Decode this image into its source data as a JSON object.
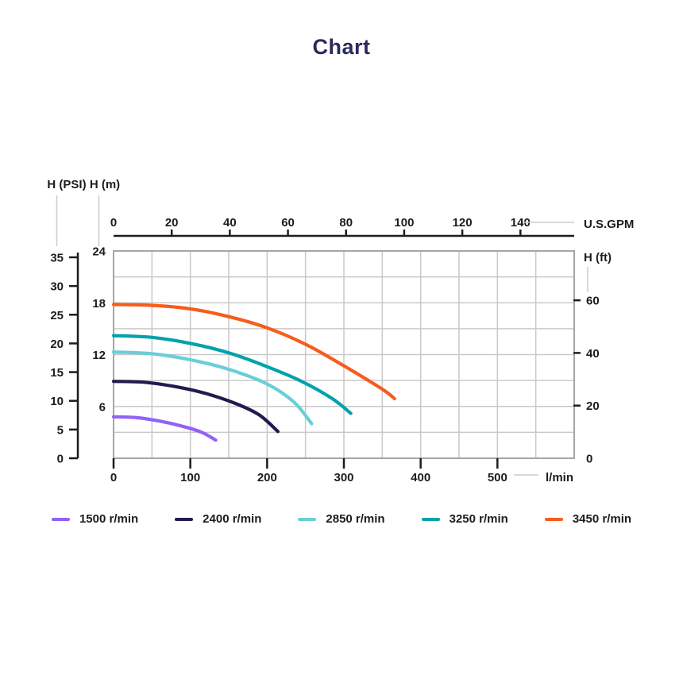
{
  "chart_data": {
    "type": "line",
    "title": "Chart",
    "grid": true,
    "legend_position": "bottom",
    "x_axis_bottom": {
      "label": "l/min",
      "min": 0,
      "max": 600,
      "tick_step": 100,
      "ticks": [
        0,
        100,
        200,
        300,
        400,
        500
      ],
      "gridline_step": 50
    },
    "x_axis_top": {
      "label": "U.S.GPM",
      "ticks": [
        0,
        20,
        40,
        60,
        80,
        100,
        120,
        140
      ],
      "lmin_per_gpm": 3.78541
    },
    "y_axis_left_m": {
      "label": "H (m)",
      "min": 0,
      "max": 24,
      "ticks": [
        6,
        12,
        18,
        24
      ],
      "gridline_step": 3
    },
    "y_axis_left_psi": {
      "label": "H (PSI)",
      "min": 0,
      "max": 35,
      "ticks": [
        0,
        5,
        10,
        15,
        20,
        25,
        30,
        35
      ]
    },
    "y_axis_right_ft": {
      "label": "H (ft)",
      "ticks": [
        0,
        20,
        40,
        60
      ],
      "m_per_ft": 0.3048
    },
    "series": [
      {
        "name": "1500 r/min",
        "color": "#9162f5",
        "points_lmin_m": [
          [
            0,
            4.8
          ],
          [
            30,
            4.7
          ],
          [
            60,
            4.3
          ],
          [
            90,
            3.7
          ],
          [
            115,
            3.0
          ],
          [
            133,
            2.1
          ]
        ]
      },
      {
        "name": "2400 r/min",
        "color": "#211c4f",
        "points_lmin_m": [
          [
            0,
            8.9
          ],
          [
            40,
            8.8
          ],
          [
            80,
            8.3
          ],
          [
            120,
            7.5
          ],
          [
            160,
            6.3
          ],
          [
            190,
            5.0
          ],
          [
            214,
            3.1
          ]
        ]
      },
      {
        "name": "2850 r/min",
        "color": "#68cfd6",
        "points_lmin_m": [
          [
            0,
            12.3
          ],
          [
            50,
            12.1
          ],
          [
            100,
            11.4
          ],
          [
            150,
            10.3
          ],
          [
            200,
            8.6
          ],
          [
            235,
            6.5
          ],
          [
            258,
            4.0
          ]
        ]
      },
      {
        "name": "3250 r/min",
        "color": "#00a2ad",
        "points_lmin_m": [
          [
            0,
            14.2
          ],
          [
            50,
            14.0
          ],
          [
            100,
            13.3
          ],
          [
            150,
            12.2
          ],
          [
            200,
            10.6
          ],
          [
            245,
            8.9
          ],
          [
            285,
            6.9
          ],
          [
            309,
            5.2
          ]
        ]
      },
      {
        "name": "3450 r/min",
        "color": "#f75c1c",
        "points_lmin_m": [
          [
            0,
            17.8
          ],
          [
            50,
            17.7
          ],
          [
            100,
            17.3
          ],
          [
            150,
            16.4
          ],
          [
            200,
            15.1
          ],
          [
            250,
            13.2
          ],
          [
            300,
            10.7
          ],
          [
            350,
            8.0
          ],
          [
            366,
            6.9
          ]
        ]
      }
    ],
    "colors": {
      "title": "#2b2a5c",
      "text": "#1c1c1c",
      "axis": "#1c1c1c",
      "grid": "#c9c9c9",
      "plot_border": "#a6a6a6",
      "leader": "#cccccc",
      "background": "#ffffff"
    }
  }
}
